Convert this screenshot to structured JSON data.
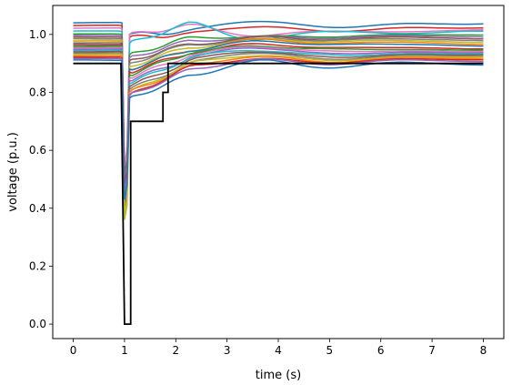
{
  "chart_data": {
    "type": "line",
    "title": "",
    "xlabel": "time (s)",
    "ylabel": "voltage (p.u.)",
    "xlim": [
      -0.4,
      8.4
    ],
    "ylim": [
      -0.05,
      1.1
    ],
    "xticks": [
      0,
      1,
      2,
      3,
      4,
      5,
      6,
      7,
      8
    ],
    "yticks": [
      0.0,
      0.2,
      0.4,
      0.6,
      0.8,
      1.0
    ],
    "xtick_labels": [
      "0",
      "1",
      "2",
      "3",
      "4",
      "5",
      "6",
      "7",
      "8"
    ],
    "ytick_labels": [
      "0.0",
      "0.2",
      "0.4",
      "0.6",
      "0.8",
      "1.0"
    ],
    "grid": false,
    "legend": "none",
    "reference_series": {
      "color": "#000000",
      "x": [
        0,
        0.93,
        0.93,
        1.0,
        1.0,
        1.12,
        1.12,
        1.75,
        1.75,
        1.85,
        1.85,
        1.98,
        1.98,
        8.0
      ],
      "y": [
        0.9,
        0.9,
        0.9,
        0.0,
        0.0,
        0.0,
        0.7,
        0.7,
        0.8,
        0.8,
        0.9,
        0.9,
        0.9,
        0.9
      ]
    },
    "series": [
      {
        "color": "#1f77b4",
        "y0": 1.04,
        "dip": 0.42,
        "rise": 1.0,
        "recover": 1.01,
        "final": 1.035
      },
      {
        "color": "#d62728",
        "y0": 1.03,
        "dip": 0.48,
        "rise": 0.99,
        "recover": 1.0,
        "final": 1.02
      },
      {
        "color": "#e377c2",
        "y0": 1.02,
        "dip": 0.55,
        "rise": 1.0,
        "recover": 1.03,
        "final": 1.01
      },
      {
        "color": "#17becf",
        "y0": 1.01,
        "dip": 0.45,
        "rise": 0.97,
        "recover": 1.04,
        "final": 1.005
      },
      {
        "color": "#2ca02c",
        "y0": 1.0,
        "dip": 0.4,
        "rise": 0.93,
        "recover": 0.99,
        "final": 0.995
      },
      {
        "color": "#9467bd",
        "y0": 0.995,
        "dip": 0.5,
        "rise": 0.92,
        "recover": 0.98,
        "final": 0.99
      },
      {
        "color": "#8c564b",
        "y0": 0.99,
        "dip": 0.52,
        "rise": 0.91,
        "recover": 0.97,
        "final": 0.985
      },
      {
        "color": "#7f7f7f",
        "y0": 0.985,
        "dip": 0.46,
        "rise": 0.9,
        "recover": 0.97,
        "final": 0.98
      },
      {
        "color": "#bcbd22",
        "y0": 0.98,
        "dip": 0.38,
        "rise": 0.89,
        "recover": 0.96,
        "final": 0.975
      },
      {
        "color": "#ff7f0e",
        "y0": 0.975,
        "dip": 0.47,
        "rise": 0.88,
        "recover": 0.95,
        "final": 0.97
      },
      {
        "color": "#1f77b4",
        "y0": 0.97,
        "dip": 0.44,
        "rise": 0.88,
        "recover": 0.95,
        "final": 0.965
      },
      {
        "color": "#d62728",
        "y0": 0.965,
        "dip": 0.5,
        "rise": 0.87,
        "recover": 0.94,
        "final": 0.955
      },
      {
        "color": "#2ca02c",
        "y0": 0.96,
        "dip": 0.43,
        "rise": 0.86,
        "recover": 0.94,
        "final": 0.95
      },
      {
        "color": "#e377c2",
        "y0": 0.955,
        "dip": 0.49,
        "rise": 0.85,
        "recover": 0.93,
        "final": 0.945
      },
      {
        "color": "#9467bd",
        "y0": 0.95,
        "dip": 0.41,
        "rise": 0.84,
        "recover": 0.92,
        "final": 0.94
      },
      {
        "color": "#17becf",
        "y0": 0.945,
        "dip": 0.45,
        "rise": 0.83,
        "recover": 0.92,
        "final": 0.935
      },
      {
        "color": "#8c564b",
        "y0": 0.94,
        "dip": 0.47,
        "rise": 0.82,
        "recover": 0.91,
        "final": 0.93
      },
      {
        "color": "#7f7f7f",
        "y0": 0.935,
        "dip": 0.5,
        "rise": 0.81,
        "recover": 0.9,
        "final": 0.925
      },
      {
        "color": "#bcbd22",
        "y0": 0.93,
        "dip": 0.36,
        "rise": 0.8,
        "recover": 0.9,
        "final": 0.92
      },
      {
        "color": "#ff7f0e",
        "y0": 0.925,
        "dip": 0.44,
        "rise": 0.8,
        "recover": 0.89,
        "final": 0.915
      },
      {
        "color": "#d62728",
        "y0": 0.92,
        "dip": 0.48,
        "rise": 0.79,
        "recover": 0.89,
        "final": 0.91
      },
      {
        "color": "#9467bd",
        "y0": 0.915,
        "dip": 0.46,
        "rise": 0.79,
        "recover": 0.88,
        "final": 0.905
      },
      {
        "color": "#1f77b4",
        "y0": 0.91,
        "dip": 0.43,
        "rise": 0.78,
        "recover": 0.86,
        "final": 0.895
      }
    ]
  }
}
